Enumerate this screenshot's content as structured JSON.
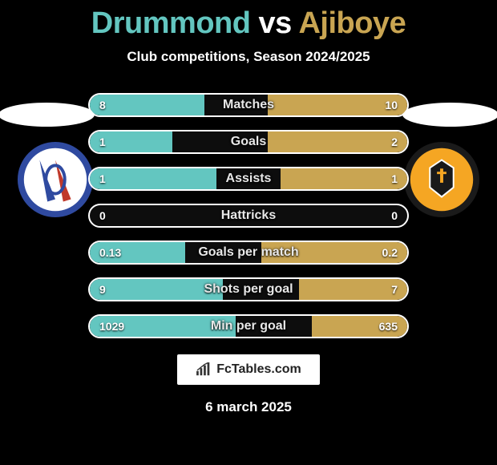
{
  "title": {
    "player1": "Drummond",
    "vs": "vs",
    "player2": "Ajiboye",
    "p1_color": "#63c6c0",
    "p2_color": "#c9a552"
  },
  "subtitle": "Club competitions, Season 2024/2025",
  "date": "6 march 2025",
  "watermark": "FcTables.com",
  "bar_style": {
    "left_color": "#63c6c0",
    "right_color": "#c9a552",
    "border_color": "#ffffff",
    "track_bg": "rgba(255,255,255,0.05)"
  },
  "crest_left": {
    "ring_color": "#2f4aa0",
    "inner_bg": "#ffffff",
    "stripes": [
      "#2f4aa0",
      "#c0392b"
    ]
  },
  "crest_right": {
    "ring_color": "#1a1a1a",
    "inner_bg": "#f5a623",
    "accent": "#ffffff"
  },
  "stats": [
    {
      "label": "Matches",
      "left_val": "8",
      "right_val": "10",
      "left_pct": 36,
      "right_pct": 44
    },
    {
      "label": "Goals",
      "left_val": "1",
      "right_val": "2",
      "left_pct": 26,
      "right_pct": 44
    },
    {
      "label": "Assists",
      "left_val": "1",
      "right_val": "1",
      "left_pct": 40,
      "right_pct": 40
    },
    {
      "label": "Hattricks",
      "left_val": "0",
      "right_val": "0",
      "left_pct": 0,
      "right_pct": 0
    },
    {
      "label": "Goals per match",
      "left_val": "0.13",
      "right_val": "0.2",
      "left_pct": 30,
      "right_pct": 46
    },
    {
      "label": "Shots per goal",
      "left_val": "9",
      "right_val": "7",
      "left_pct": 42,
      "right_pct": 34
    },
    {
      "label": "Min per goal",
      "left_val": "1029",
      "right_val": "635",
      "left_pct": 46,
      "right_pct": 30
    }
  ]
}
